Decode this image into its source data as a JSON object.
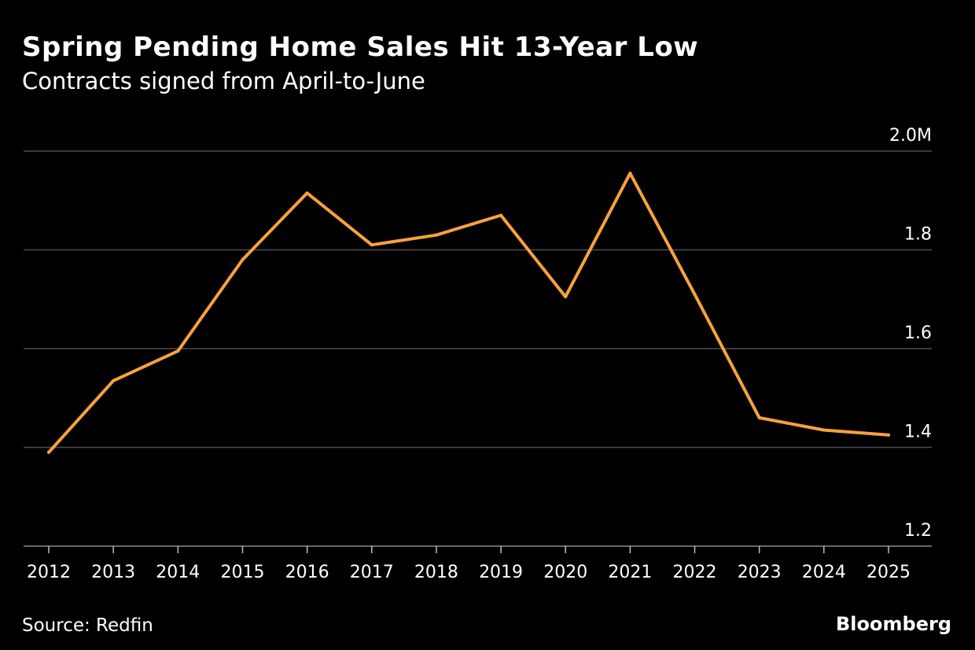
{
  "header": {
    "title": "Spring Pending Home Sales Hit 13-Year Low",
    "subtitle": "Contracts signed from April-to-June"
  },
  "footer": {
    "source": "Source: Redfin",
    "brand": "Bloomberg"
  },
  "colors": {
    "background": "#000000",
    "line": "#F7A23B",
    "grid": "#4d4d4d",
    "text": "#ffffff"
  },
  "chart_data": {
    "type": "line",
    "title": "Spring Pending Home Sales Hit 13-Year Low",
    "subtitle": "Contracts signed from April-to-June",
    "xlabel": "",
    "ylabel": "",
    "x": [
      "2012",
      "2013",
      "2014",
      "2015",
      "2016",
      "2017",
      "2018",
      "2019",
      "2020",
      "2021",
      "2022",
      "2023",
      "2024",
      "2025"
    ],
    "series": [
      {
        "values": [
          1.39,
          1.535,
          1.595,
          1.78,
          1.915,
          1.81,
          1.83,
          1.87,
          1.705,
          1.955,
          1.71,
          1.46,
          1.435,
          1.425
        ]
      }
    ],
    "ylim": [
      1.2,
      2.0
    ],
    "yticks": [
      1.2,
      1.4,
      1.6,
      1.8,
      2.0
    ],
    "ytick_labels": [
      "1.2",
      "1.4",
      "1.6",
      "1.8",
      "2.0M"
    ],
    "y_axis_side": "right",
    "grid": true
  }
}
